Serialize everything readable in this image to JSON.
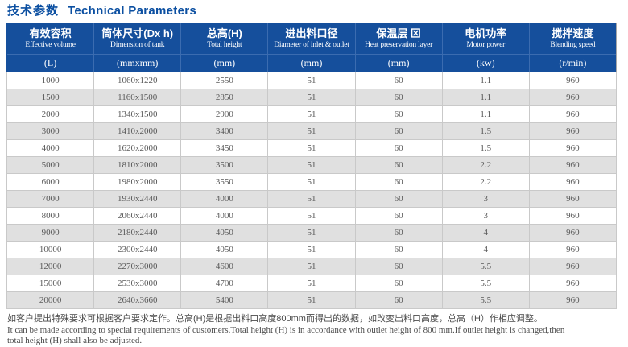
{
  "title": {
    "cn": "技术参数",
    "en": "Technical Parameters"
  },
  "colors": {
    "header_blue": "#154f9c",
    "header_divider_blue": "#3b6cb0",
    "title_blue": "#0b4fa1",
    "alt_row_gray": "#e0e0e0",
    "cell_text_gray": "#595959"
  },
  "table": {
    "columns": [
      {
        "cn": "有效容积",
        "en": "Effective volume",
        "unit": "(L)"
      },
      {
        "cn": "筒体尺寸(Dx h)",
        "en": "Dimension of tank",
        "unit": "(mmxmm)"
      },
      {
        "cn": "总高(H)",
        "en": "Total height",
        "unit": "(mm)"
      },
      {
        "cn": "进出料口径",
        "en": "Diameter of inlet & outlet",
        "unit": "(mm)"
      },
      {
        "cn": "保温层 ⊠",
        "en": "Heat preservation layer",
        "unit": "(mm)"
      },
      {
        "cn": "电机功率",
        "en": "Motor power",
        "unit": "(kw)"
      },
      {
        "cn": "搅拌速度",
        "en": "Blending speed",
        "unit": "(r/min)"
      }
    ],
    "rows": [
      [
        "1000",
        "1060x1220",
        "2550",
        "51",
        "60",
        "1.1",
        "960"
      ],
      [
        "1500",
        "1160x1500",
        "2850",
        "51",
        "60",
        "1.1",
        "960"
      ],
      [
        "2000",
        "1340x1500",
        "2900",
        "51",
        "60",
        "1.1",
        "960"
      ],
      [
        "3000",
        "1410x2000",
        "3400",
        "51",
        "60",
        "1.5",
        "960"
      ],
      [
        "4000",
        "1620x2000",
        "3450",
        "51",
        "60",
        "1.5",
        "960"
      ],
      [
        "5000",
        "1810x2000",
        "3500",
        "51",
        "60",
        "2.2",
        "960"
      ],
      [
        "6000",
        "1980x2000",
        "3550",
        "51",
        "60",
        "2.2",
        "960"
      ],
      [
        "7000",
        "1930x2440",
        "4000",
        "51",
        "60",
        "3",
        "960"
      ],
      [
        "8000",
        "2060x2440",
        "4000",
        "51",
        "60",
        "3",
        "960"
      ],
      [
        "9000",
        "2180x2440",
        "4050",
        "51",
        "60",
        "4",
        "960"
      ],
      [
        "10000",
        "2300x2440",
        "4050",
        "51",
        "60",
        "4",
        "960"
      ],
      [
        "12000",
        "2270x3000",
        "4600",
        "51",
        "60",
        "5.5",
        "960"
      ],
      [
        "15000",
        "2530x3000",
        "4700",
        "51",
        "60",
        "5.5",
        "960"
      ],
      [
        "20000",
        "2640x3660",
        "5400",
        "51",
        "60",
        "5.5",
        "960"
      ]
    ]
  },
  "notes": {
    "cn": "如客户提出特殊要求可根据客户要求定作。总高(H)是根据出料口高度800mm而得出的数据，如改变出料口高度，总高（H）作相应调整。",
    "en_line1": "It can be made according to special requirements of customers.Total height (H) is in accordance with outlet height of 800 mm.If outlet height is changed,then",
    "en_line2": "total height (H) shall also be adjusted."
  }
}
